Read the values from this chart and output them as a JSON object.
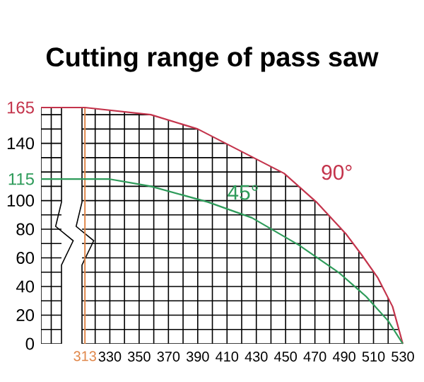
{
  "chart_data": {
    "type": "line",
    "title": "Cutting range of pass saw",
    "xlim": [
      283,
      530
    ],
    "ylim": [
      0,
      165
    ],
    "xticks": [
      330,
      350,
      370,
      390,
      410,
      430,
      450,
      470,
      490,
      510,
      530
    ],
    "yticks": [
      0,
      20,
      40,
      60,
      80,
      100,
      {
        "value": 115,
        "label": "115"
      },
      140,
      {
        "value": 165,
        "label": "165"
      }
    ],
    "grid": true,
    "marker": "none",
    "series": [
      {
        "name": "90°",
        "color": "#c4344c",
        "x": [
          283,
          313,
          358,
          390,
          449,
          471,
          491,
          502,
          513,
          523,
          530
        ],
        "values": [
          165,
          165,
          160,
          150,
          119,
          99,
          77,
          62,
          46,
          26,
          0
        ]
      },
      {
        "name": "45°",
        "color": "#2e9b5a",
        "x": [
          283,
          330,
          358,
          397,
          427,
          459,
          486,
          505,
          520,
          530
        ],
        "values": [
          115,
          115,
          110,
          99,
          88,
          69,
          50,
          33,
          16,
          0
        ]
      }
    ],
    "ref_lines": [
      {
        "axis": "x",
        "value": 313,
        "label": "313",
        "color": "#e0874a"
      }
    ]
  }
}
